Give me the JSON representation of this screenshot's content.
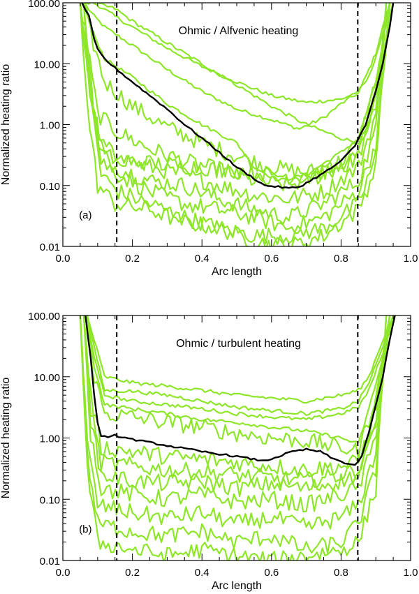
{
  "chart_data": [
    {
      "panel": "a",
      "type": "line",
      "title": "Ohmic / Alfvenic heating",
      "panel_label": "(a)",
      "xlabel": "Arc length",
      "ylabel": "Normalized heating ratio",
      "xlim": [
        0.0,
        1.0
      ],
      "ylim": [
        0.01,
        100.0
      ],
      "yscale": "log",
      "xticks": [
        0.0,
        0.2,
        0.4,
        0.6,
        0.8,
        1.0
      ],
      "xtick_labels": [
        "0.0",
        "0.2",
        "0.4",
        "0.6",
        "0.8",
        "1.0"
      ],
      "yticks": [
        0.01,
        0.1,
        1.0,
        10.0,
        100.0
      ],
      "ytick_labels": [
        "0.01",
        "0.10",
        "1.00",
        "10.00",
        "100.00"
      ],
      "vlines": [
        0.155,
        0.848
      ],
      "mean_series": {
        "name": "average",
        "x": [
          0.055,
          0.075,
          0.09,
          0.1,
          0.12,
          0.15,
          0.2,
          0.25,
          0.3,
          0.35,
          0.4,
          0.45,
          0.5,
          0.55,
          0.58,
          0.6,
          0.62,
          0.65,
          0.68,
          0.7,
          0.75,
          0.8,
          0.84,
          0.87,
          0.9,
          0.92,
          0.94,
          0.95
        ],
        "y": [
          100,
          60,
          25,
          17,
          12,
          8.5,
          5.0,
          3.0,
          1.8,
          1.0,
          0.6,
          0.35,
          0.2,
          0.13,
          0.1,
          0.098,
          0.095,
          0.09,
          0.095,
          0.11,
          0.16,
          0.25,
          0.45,
          1.0,
          3.5,
          10,
          40,
          100
        ]
      },
      "series": [
        {
          "name": "curve-1",
          "x": [
            0.06,
            0.09,
            0.12,
            0.2,
            0.3,
            0.4,
            0.5,
            0.6,
            0.68,
            0.75,
            0.8,
            0.85,
            0.88,
            0.9,
            0.92,
            0.94
          ],
          "y": [
            100,
            60,
            40,
            20,
            8,
            3.5,
            1.8,
            1.2,
            0.85,
            1.3,
            2.2,
            3.3,
            8,
            15,
            40,
            100
          ]
        },
        {
          "name": "curve-2",
          "x": [
            0.06,
            0.09,
            0.15,
            0.2,
            0.3,
            0.4,
            0.5,
            0.6,
            0.7,
            0.8,
            0.85,
            0.88,
            0.92,
            0.95
          ],
          "y": [
            100,
            100,
            60,
            40,
            18,
            9,
            5,
            3,
            2.3,
            2.6,
            3.5,
            6,
            30,
            100
          ]
        },
        {
          "name": "curve-3",
          "x": [
            0.06,
            0.09,
            0.15,
            0.2,
            0.3,
            0.4,
            0.5,
            0.6,
            0.7,
            0.8,
            0.85,
            0.88,
            0.92,
            0.95
          ],
          "y": [
            100,
            100,
            80,
            50,
            22,
            10,
            4.5,
            2.0,
            1.0,
            0.6,
            0.5,
            1.0,
            10,
            100
          ]
        },
        {
          "name": "curve-4",
          "x": [
            0.06,
            0.08,
            0.12,
            0.2,
            0.3,
            0.4,
            0.5,
            0.55,
            0.62,
            0.7,
            0.8,
            0.85,
            0.9,
            0.94
          ],
          "y": [
            100,
            40,
            12,
            6,
            2.2,
            1.0,
            0.5,
            0.2,
            0.12,
            0.15,
            0.35,
            0.6,
            5,
            100
          ]
        },
        {
          "name": "curve-5",
          "x": [
            0.06,
            0.08,
            0.12,
            0.2,
            0.3,
            0.4,
            0.5,
            0.6,
            0.7,
            0.8,
            0.85,
            0.9,
            0.94
          ],
          "y": [
            100,
            30,
            5,
            2.0,
            0.9,
            0.5,
            0.3,
            0.2,
            0.16,
            0.25,
            0.5,
            5,
            100
          ]
        },
        {
          "name": "curve-6",
          "x": [
            0.05,
            0.07,
            0.1,
            0.15,
            0.25,
            0.35,
            0.45,
            0.55,
            0.65,
            0.75,
            0.85,
            0.9,
            0.93
          ],
          "y": [
            100,
            20,
            1.5,
            0.8,
            0.4,
            0.25,
            0.18,
            0.12,
            0.1,
            0.15,
            0.3,
            2,
            100
          ]
        },
        {
          "name": "curve-7",
          "x": [
            0.05,
            0.07,
            0.1,
            0.15,
            0.25,
            0.35,
            0.45,
            0.55,
            0.65,
            0.75,
            0.85,
            0.9,
            0.93
          ],
          "y": [
            100,
            10,
            0.6,
            0.3,
            0.2,
            0.15,
            0.1,
            0.07,
            0.06,
            0.08,
            0.2,
            1.5,
            100
          ]
        },
        {
          "name": "curve-8",
          "x": [
            0.05,
            0.07,
            0.1,
            0.15,
            0.25,
            0.35,
            0.45,
            0.55,
            0.65,
            0.75,
            0.85,
            0.9,
            0.93
          ],
          "y": [
            100,
            8,
            0.4,
            0.2,
            0.12,
            0.1,
            0.06,
            0.04,
            0.03,
            0.05,
            0.12,
            0.8,
            100
          ]
        },
        {
          "name": "curve-9",
          "x": [
            0.06,
            0.08,
            0.11,
            0.16,
            0.25,
            0.35,
            0.45,
            0.55,
            0.65,
            0.75,
            0.85,
            0.9,
            0.94
          ],
          "y": [
            100,
            5,
            0.25,
            0.15,
            0.08,
            0.05,
            0.04,
            0.03,
            0.02,
            0.03,
            0.08,
            0.5,
            100
          ]
        },
        {
          "name": "curve-10",
          "x": [
            0.06,
            0.08,
            0.11,
            0.16,
            0.25,
            0.35,
            0.45,
            0.55,
            0.65,
            0.75,
            0.85,
            0.9,
            0.94
          ],
          "y": [
            100,
            3,
            0.15,
            0.08,
            0.05,
            0.03,
            0.02,
            0.015,
            0.015,
            0.02,
            0.05,
            0.3,
            100
          ]
        },
        {
          "name": "curve-11",
          "x": [
            0.05,
            0.07,
            0.1,
            0.15,
            0.25,
            0.35,
            0.45,
            0.55,
            0.65,
            0.75,
            0.85,
            0.9,
            0.93
          ],
          "y": [
            100,
            2,
            0.1,
            0.05,
            0.04,
            0.025,
            0.02,
            0.012,
            0.01,
            0.015,
            0.04,
            0.2,
            100
          ]
        },
        {
          "name": "curve-12",
          "x": [
            0.06,
            0.09,
            0.12,
            0.2,
            0.3,
            0.4,
            0.5,
            0.6,
            0.7,
            0.8,
            0.85,
            0.9,
            0.94
          ],
          "y": [
            100,
            1.5,
            0.3,
            0.25,
            0.22,
            0.2,
            0.18,
            0.15,
            0.14,
            0.2,
            0.3,
            3,
            100
          ]
        }
      ]
    },
    {
      "panel": "b",
      "type": "line",
      "title": "Ohmic / turbulent heating",
      "panel_label": "(b)",
      "xlabel": "Arc length",
      "ylabel": "Normalized heating ratio",
      "xlim": [
        0.0,
        1.0
      ],
      "ylim": [
        0.01,
        100.0
      ],
      "yscale": "log",
      "xticks": [
        0.0,
        0.2,
        0.4,
        0.6,
        0.8,
        1.0
      ],
      "xtick_labels": [
        "0.0",
        "0.2",
        "0.4",
        "0.6",
        "0.8",
        "1.0"
      ],
      "yticks": [
        0.01,
        0.1,
        1.0,
        10.0,
        100.0
      ],
      "ytick_labels": [
        "0.01",
        "0.10",
        "1.00",
        "10.00",
        "100.00"
      ],
      "vlines": [
        0.155,
        0.848
      ],
      "mean_series": {
        "name": "average",
        "x": [
          0.065,
          0.08,
          0.09,
          0.1,
          0.11,
          0.13,
          0.15,
          0.2,
          0.3,
          0.4,
          0.5,
          0.58,
          0.62,
          0.66,
          0.7,
          0.74,
          0.78,
          0.82,
          0.84,
          0.86,
          0.89,
          0.92,
          0.94,
          0.955
        ],
        "y": [
          100,
          20,
          5,
          1.8,
          1.1,
          1.0,
          1.1,
          0.95,
          0.75,
          0.6,
          0.5,
          0.42,
          0.5,
          0.6,
          0.65,
          0.6,
          0.45,
          0.38,
          0.36,
          0.5,
          2,
          10,
          40,
          100
        ]
      },
      "series": [
        {
          "name": "curve-1",
          "x": [
            0.07,
            0.09,
            0.12,
            0.2,
            0.3,
            0.4,
            0.5,
            0.6,
            0.7,
            0.8,
            0.85,
            0.88,
            0.92,
            0.95
          ],
          "y": [
            100,
            40,
            10,
            8,
            7,
            6,
            5,
            4.5,
            4,
            5,
            6,
            10,
            40,
            100
          ]
        },
        {
          "name": "curve-2",
          "x": [
            0.07,
            0.09,
            0.12,
            0.2,
            0.3,
            0.4,
            0.5,
            0.6,
            0.7,
            0.8,
            0.85,
            0.88,
            0.92,
            0.95
          ],
          "y": [
            100,
            30,
            6,
            5.8,
            5,
            4,
            3.2,
            2.8,
            2.5,
            3.0,
            4,
            8,
            30,
            100
          ]
        },
        {
          "name": "curve-3",
          "x": [
            0.07,
            0.09,
            0.12,
            0.2,
            0.3,
            0.4,
            0.5,
            0.6,
            0.7,
            0.8,
            0.85,
            0.88,
            0.92,
            0.95
          ],
          "y": [
            100,
            20,
            5,
            4,
            3.5,
            3.0,
            2.5,
            2.2,
            2.0,
            2.5,
            3.2,
            6,
            25,
            100
          ]
        },
        {
          "name": "curve-4",
          "x": [
            0.07,
            0.09,
            0.12,
            0.2,
            0.3,
            0.4,
            0.5,
            0.6,
            0.7,
            0.8,
            0.85,
            0.88,
            0.92,
            0.95
          ],
          "y": [
            100,
            15,
            3.5,
            3.0,
            2.5,
            2.0,
            1.8,
            1.5,
            1.3,
            1.0,
            0.8,
            3,
            20,
            100
          ]
        },
        {
          "name": "curve-5",
          "x": [
            0.07,
            0.09,
            0.12,
            0.2,
            0.3,
            0.4,
            0.5,
            0.6,
            0.7,
            0.8,
            0.85,
            0.88,
            0.92,
            0.95
          ],
          "y": [
            100,
            10,
            2.5,
            2.2,
            1.8,
            1.5,
            1.2,
            1.0,
            0.9,
            0.7,
            0.6,
            2,
            15,
            100
          ]
        },
        {
          "name": "curve-6",
          "x": [
            0.06,
            0.08,
            0.11,
            0.2,
            0.3,
            0.4,
            0.5,
            0.6,
            0.7,
            0.8,
            0.85,
            0.9,
            0.94
          ],
          "y": [
            100,
            5,
            0.7,
            0.6,
            0.5,
            0.45,
            0.4,
            0.35,
            0.3,
            0.35,
            0.4,
            3,
            100
          ]
        },
        {
          "name": "curve-7",
          "x": [
            0.06,
            0.08,
            0.11,
            0.2,
            0.3,
            0.4,
            0.5,
            0.6,
            0.7,
            0.8,
            0.85,
            0.9,
            0.94
          ],
          "y": [
            100,
            3,
            0.4,
            0.35,
            0.3,
            0.28,
            0.25,
            0.22,
            0.2,
            0.25,
            0.3,
            2,
            100
          ]
        },
        {
          "name": "curve-8",
          "x": [
            0.06,
            0.08,
            0.11,
            0.2,
            0.3,
            0.4,
            0.5,
            0.6,
            0.7,
            0.8,
            0.85,
            0.9,
            0.94
          ],
          "y": [
            100,
            2,
            0.25,
            0.2,
            0.18,
            0.2,
            0.15,
            0.18,
            0.15,
            0.2,
            0.25,
            1.5,
            100
          ]
        },
        {
          "name": "curve-9",
          "x": [
            0.06,
            0.08,
            0.11,
            0.2,
            0.3,
            0.4,
            0.5,
            0.6,
            0.7,
            0.8,
            0.85,
            0.9,
            0.94
          ],
          "y": [
            100,
            1.2,
            0.15,
            0.12,
            0.1,
            0.12,
            0.09,
            0.1,
            0.08,
            0.12,
            0.15,
            1.0,
            100
          ]
        },
        {
          "name": "curve-10",
          "x": [
            0.05,
            0.07,
            0.1,
            0.2,
            0.3,
            0.4,
            0.5,
            0.6,
            0.7,
            0.8,
            0.85,
            0.9,
            0.93
          ],
          "y": [
            100,
            0.8,
            0.08,
            0.06,
            0.05,
            0.06,
            0.04,
            0.05,
            0.035,
            0.05,
            0.08,
            0.6,
            100
          ]
        },
        {
          "name": "curve-11",
          "x": [
            0.05,
            0.07,
            0.1,
            0.2,
            0.3,
            0.4,
            0.5,
            0.6,
            0.7,
            0.8,
            0.85,
            0.9,
            0.93
          ],
          "y": [
            100,
            0.5,
            0.04,
            0.03,
            0.025,
            0.03,
            0.02,
            0.025,
            0.015,
            0.02,
            0.04,
            0.3,
            100
          ]
        },
        {
          "name": "curve-12",
          "x": [
            0.05,
            0.07,
            0.1,
            0.2,
            0.3,
            0.4,
            0.5,
            0.6,
            0.7,
            0.8,
            0.85,
            0.9,
            0.93
          ],
          "y": [
            100,
            0.3,
            0.02,
            0.015,
            0.012,
            0.015,
            0.012,
            0.01,
            0.012,
            0.015,
            0.02,
            0.15,
            100
          ]
        }
      ]
    }
  ],
  "colors": {
    "curves": "#8ee62a",
    "mean": "#000000",
    "axes": "#000000",
    "vlines": "#000000"
  }
}
